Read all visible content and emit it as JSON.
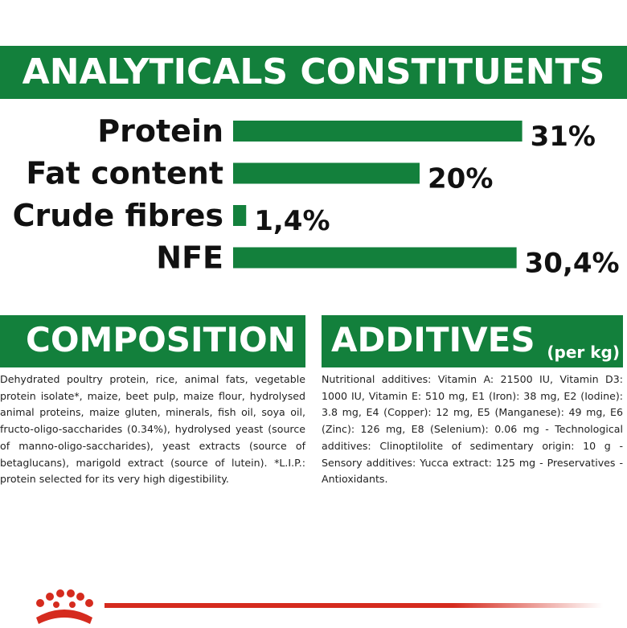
{
  "chart_data": {
    "type": "bar",
    "title": "ANALYTICALS CONSTITUENTS",
    "categories": [
      "Protein",
      "Fat content",
      "Crude fibres",
      "NFE"
    ],
    "values": [
      31,
      20,
      1.4,
      30.4
    ],
    "value_labels": [
      "31%",
      "20%",
      "1,4%",
      "30,4%"
    ],
    "color": "#13803c"
  },
  "composition": {
    "title": "COMPOSITION",
    "text": "Dehydrated poultry protein, rice, animal fats, vegetable protein isolate*, maize, beet pulp, maize flour, hydrolysed animal proteins, maize gluten, minerals, fish oil, soya oil, fructo-oligo-saccharides (0.34%), hydrolysed yeast (source of manno-oligo-saccharides), yeast extracts (source of betaglucans), marigold extract (source of lutein). *L.I.P.: protein selected for its very high digestibility."
  },
  "additives": {
    "title": "ADDITIVES",
    "unit": "(per kg)",
    "text": "Nutritional additives: Vitamin A: 21500 IU, Vitamin D3: 1000 IU, Vitamin E: 510 mg, E1 (Iron): 38 mg, E2 (Iodine): 3.8 mg, E4 (Copper): 12 mg, E5 (Manganese): 49 mg, E6 (Zinc): 126 mg, E8 (Selenium): 0.06 mg - Technological additives: Clinoptilolite of sedimentary origin: 10 g - Sensory additives: Yucca extract: 125 mg - Preservatives - Antioxidants."
  }
}
